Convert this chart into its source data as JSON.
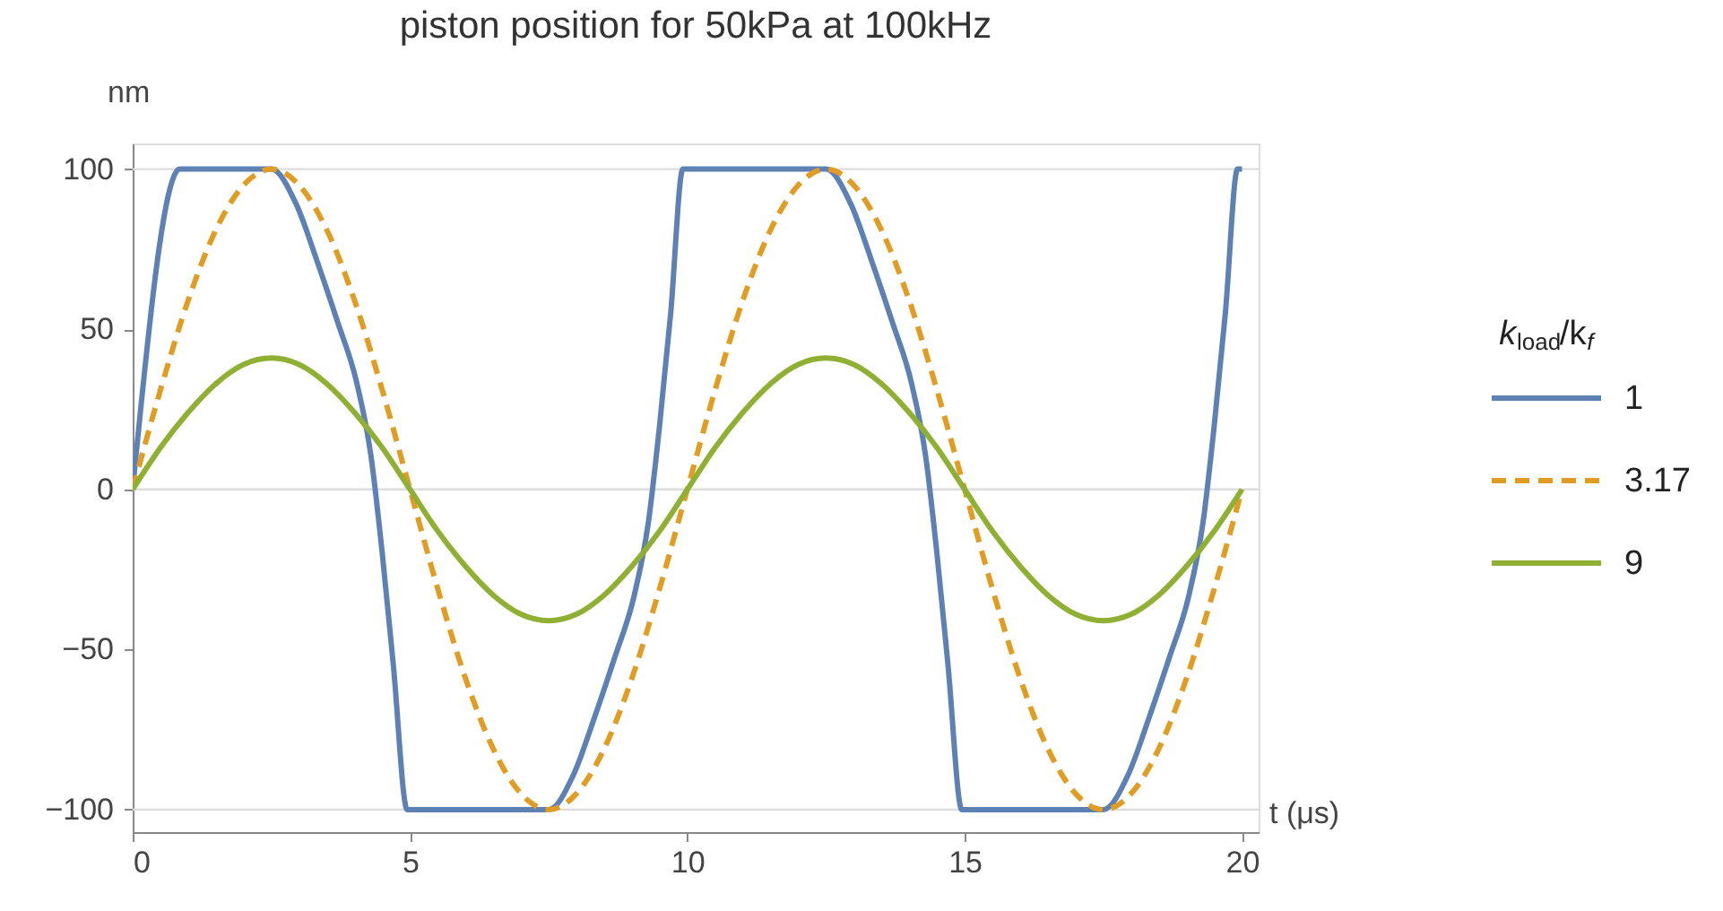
{
  "chart_data": {
    "type": "line",
    "title": "piston position for 50kPa at 100kHz",
    "xlabel": "t (μs)",
    "ylabel": "nm",
    "legend_title": "k$_{load}$/k$_{f}$",
    "xlim": [
      0,
      20.3
    ],
    "ylim": [
      -107,
      108
    ],
    "xticks": [
      0,
      5,
      10,
      15,
      20
    ],
    "yticks": [
      -100,
      -50,
      0,
      50,
      100
    ],
    "legend": "right",
    "ref_lines": [
      {
        "axis": "y",
        "value": 100,
        "color": "#dddddd"
      },
      {
        "axis": "y",
        "value": 0,
        "color": "#dddddd"
      },
      {
        "axis": "y",
        "value": -100,
        "color": "#dddddd"
      }
    ],
    "series": [
      {
        "name": "1",
        "color": "#5e81b5",
        "line_style": "solid",
        "x": [
          0,
          0.85,
          2.5,
          2.95,
          3.33,
          3.7,
          4.03,
          4.3,
          4.5,
          4.7,
          4.95,
          7.5,
          7.95,
          8.33,
          8.7,
          9.03,
          9.3,
          9.5,
          9.7,
          9.92,
          12.5,
          12.95,
          13.33,
          13.7,
          14.03,
          14.3,
          14.5,
          14.7,
          14.95,
          17.5,
          17.95,
          18.33,
          18.7,
          19.03,
          19.3,
          19.5,
          19.7,
          19.92,
          20
        ],
        "values": [
          0,
          100,
          100,
          89,
          71,
          52,
          34,
          10,
          -20,
          -55,
          -100,
          -100,
          -89,
          -71,
          -52,
          -34,
          -10,
          20,
          55,
          100,
          100,
          89,
          71,
          52,
          34,
          10,
          -20,
          -55,
          -100,
          -100,
          -89,
          -71,
          -52,
          -34,
          -10,
          20,
          55,
          100,
          100
        ]
      },
      {
        "name": "3.17",
        "color": "#e19c24",
        "line_style": "dashed",
        "x": [
          0,
          0.5,
          1,
          1.5,
          2,
          2.5,
          3,
          3.5,
          4,
          4.5,
          5,
          5.5,
          6,
          6.5,
          7,
          7.5,
          8,
          8.5,
          9,
          9.5,
          10,
          10.5,
          11,
          11.5,
          12,
          12.5,
          13,
          13.5,
          14,
          14.5,
          15,
          15.5,
          16,
          16.5,
          17,
          17.5,
          18,
          18.5,
          19,
          19.5,
          20
        ],
        "values": [
          0,
          31,
          59,
          81,
          95,
          100,
          95,
          81,
          59,
          31,
          0,
          -31,
          -59,
          -81,
          -95,
          -100,
          -95,
          -81,
          -59,
          -31,
          0,
          31,
          59,
          81,
          95,
          100,
          95,
          81,
          59,
          31,
          0,
          -31,
          -59,
          -81,
          -95,
          -100,
          -95,
          -81,
          -59,
          -31,
          0
        ]
      },
      {
        "name": "9",
        "color": "#8fb032",
        "line_style": "solid",
        "x": [
          0,
          0.5,
          1,
          1.5,
          2,
          2.5,
          3,
          3.5,
          4,
          4.5,
          5,
          5.5,
          6,
          6.5,
          7,
          7.5,
          8,
          8.5,
          9,
          9.5,
          10,
          10.5,
          11,
          11.5,
          12,
          12.5,
          13,
          13.5,
          14,
          14.5,
          15,
          15.5,
          16,
          16.5,
          17,
          17.5,
          18,
          18.5,
          19,
          19.5,
          20
        ],
        "values": [
          0,
          13,
          24,
          33,
          39,
          41,
          39,
          33,
          24,
          13,
          0,
          -13,
          -24,
          -33,
          -39,
          -41,
          -39,
          -33,
          -24,
          -13,
          0,
          13,
          24,
          33,
          39,
          41,
          39,
          33,
          24,
          13,
          0,
          -13,
          -24,
          -33,
          -39,
          -41,
          -39,
          -33,
          -24,
          -13,
          0
        ]
      }
    ]
  }
}
